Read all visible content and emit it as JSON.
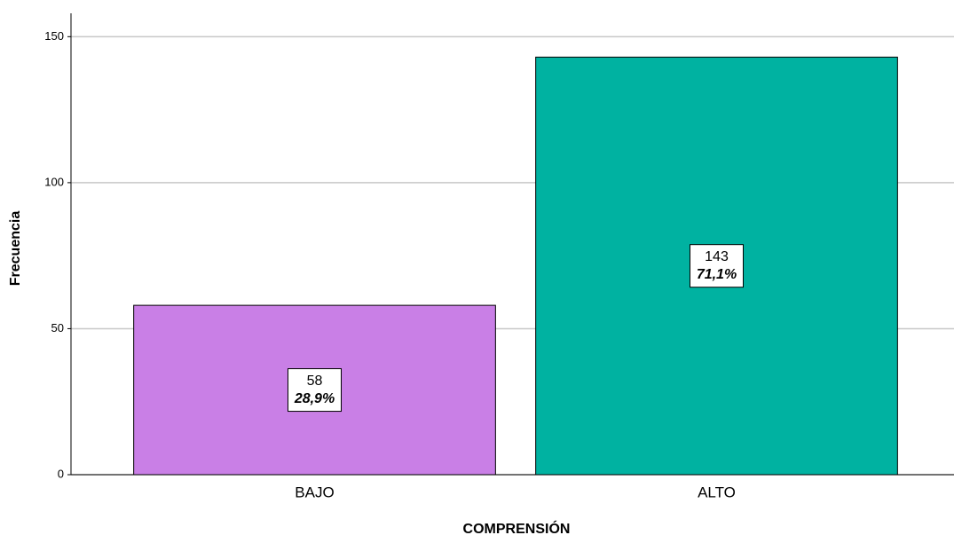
{
  "chart_data": {
    "type": "bar",
    "x_label": "COMPRENSIÓN",
    "y_label": "Frecuencia",
    "categories": [
      "BAJO",
      "ALTO"
    ],
    "values": [
      58,
      143
    ],
    "colors": [
      "#c97fe6",
      "#00b2a1"
    ],
    "percentages": [
      28.9,
      71.1
    ],
    "percentage_labels": [
      "28,9%",
      "71,1%"
    ],
    "ylim": [
      0,
      158
    ],
    "yticks": [
      0,
      50,
      100,
      150
    ],
    "grid": true
  }
}
